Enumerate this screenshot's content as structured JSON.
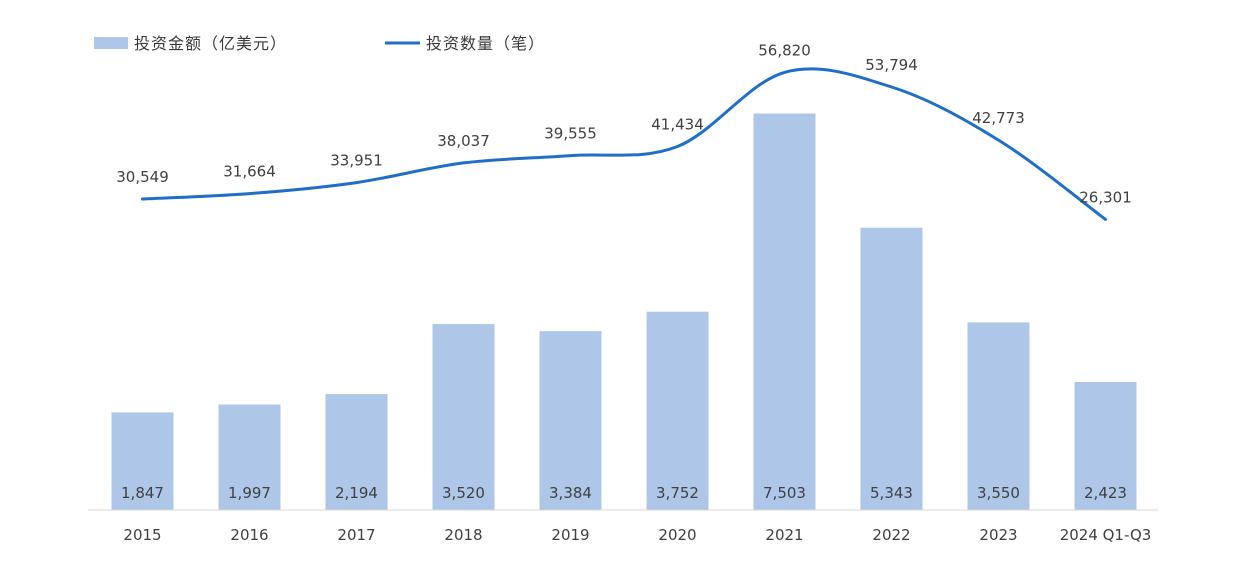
{
  "chart_data": {
    "type": "bar",
    "categories": [
      "2015",
      "2016",
      "2017",
      "2018",
      "2019",
      "2020",
      "2021",
      "2022",
      "2023",
      "2024 Q1-Q3"
    ],
    "series": [
      {
        "name": "投资金额（亿美元）",
        "type": "bar",
        "axis": "left",
        "values": [
          1847,
          1997,
          2194,
          3520,
          3384,
          3752,
          7503,
          5343,
          3550,
          2423
        ],
        "labels": [
          "1,847",
          "1,997",
          "2,194",
          "3,520",
          "3,384",
          "3,752",
          "7,503",
          "5,343",
          "3,550",
          "2,423"
        ],
        "color": "#aec7e8"
      },
      {
        "name": "投资数量（笔）",
        "type": "line",
        "axis": "right",
        "values": [
          30549,
          31664,
          33951,
          38037,
          39555,
          41434,
          56820,
          53794,
          42773,
          26301
        ],
        "labels": [
          "30,549",
          "31,664",
          "33,951",
          "38,037",
          "39,555",
          "41,434",
          "56,820",
          "53,794",
          "42,773",
          "26,301"
        ],
        "color": "#1f6fc9"
      }
    ],
    "left_axis_range": [
      0,
      8800
    ],
    "right_axis_range": [
      -34000,
      62500
    ],
    "grid": false,
    "legend_position": "top-left",
    "smooth_line": true
  }
}
